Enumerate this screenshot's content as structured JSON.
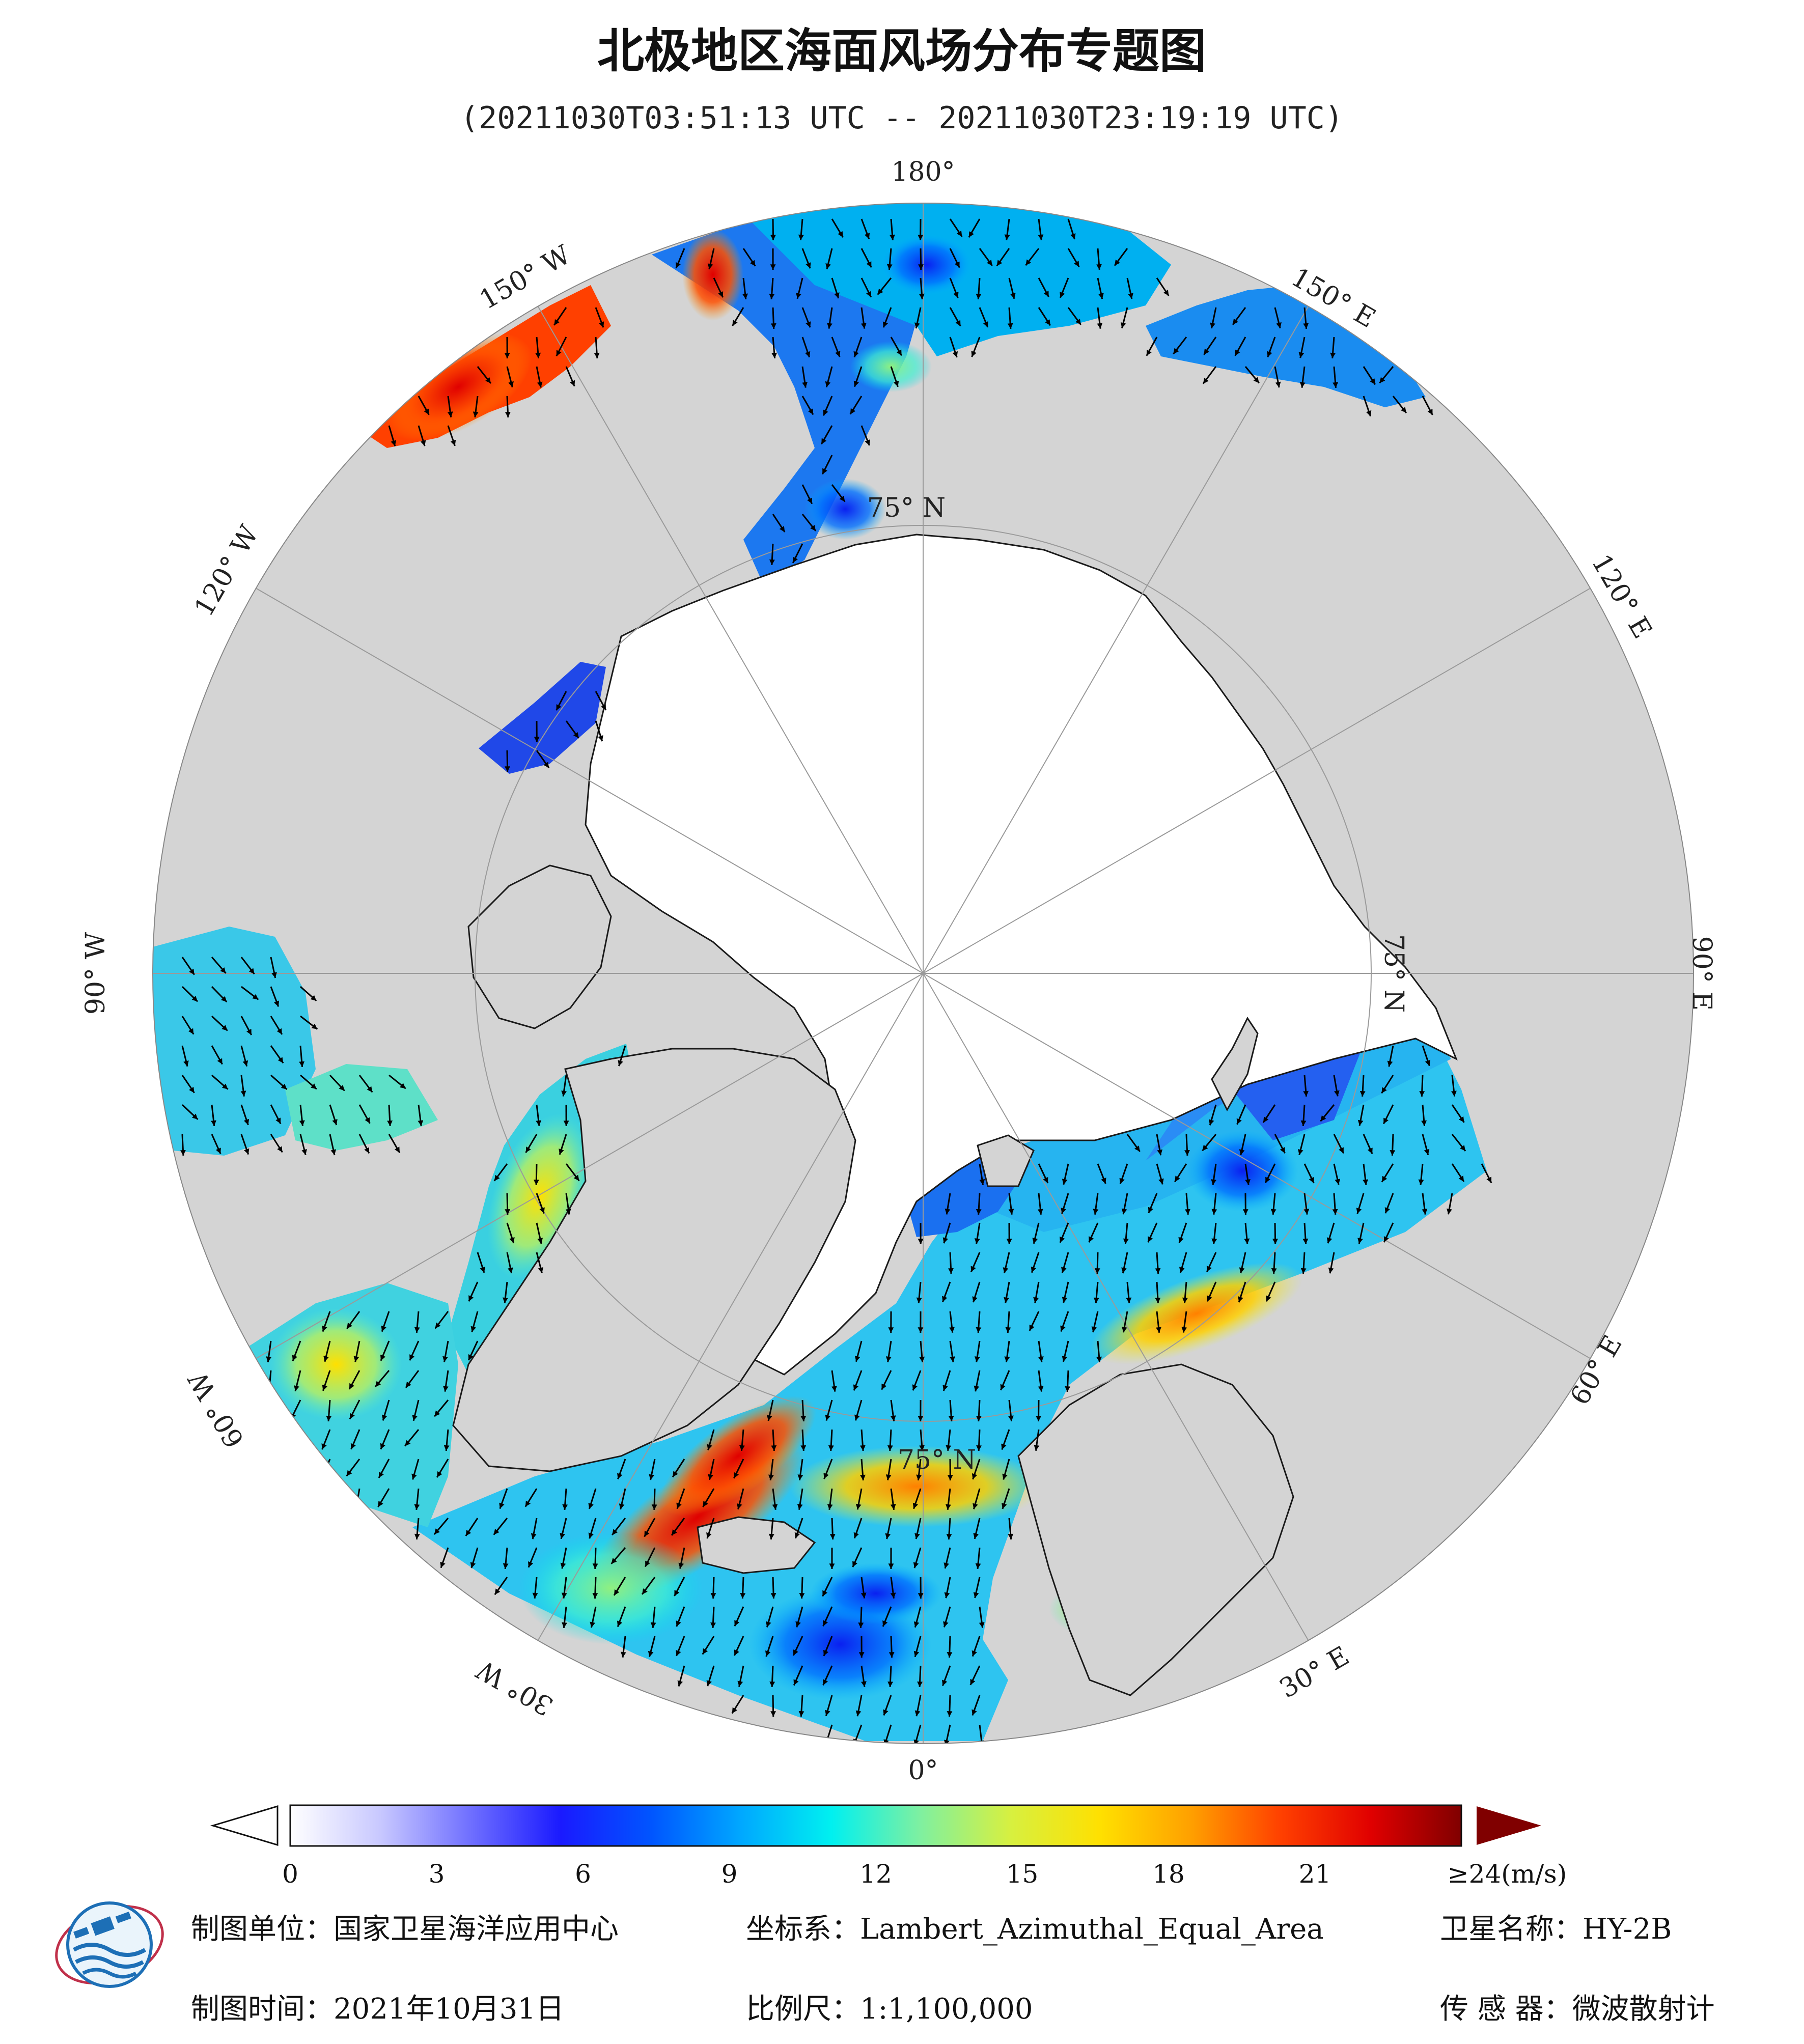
{
  "title": "北极地区海面风场分布专题图",
  "subtitle": "(20211030T03:51:13 UTC -- 20211030T23:19:19 UTC)",
  "map": {
    "longitude_labels": [
      {
        "key": "lon_180",
        "text": "180°"
      },
      {
        "key": "lon_150w",
        "text": "150° W"
      },
      {
        "key": "lon_150e",
        "text": "150° E"
      },
      {
        "key": "lon_120w",
        "text": "120° W"
      },
      {
        "key": "lon_120e",
        "text": "120° E"
      },
      {
        "key": "lon_90w",
        "text": "90° W"
      },
      {
        "key": "lon_90e",
        "text": "90° E"
      },
      {
        "key": "lon_60w",
        "text": "60° W"
      },
      {
        "key": "lon_60e",
        "text": "60° E"
      },
      {
        "key": "lon_30w",
        "text": "30° W"
      },
      {
        "key": "lon_30e",
        "text": "30° E"
      },
      {
        "key": "lon_0",
        "text": "0°"
      }
    ],
    "latitude_labels": [
      "75° N",
      "75° N",
      "75° N"
    ],
    "colors": {
      "land": "#d4d4d4",
      "ice": "#ffffff",
      "coast": "#1a1a1a",
      "graticule": "#9a9a9a",
      "arrow": "#000000"
    }
  },
  "colorbar": {
    "ticks": [
      "0",
      "3",
      "6",
      "9",
      "12",
      "15",
      "18",
      "21",
      "≥24(m/s)"
    ],
    "min": 0,
    "max": 24,
    "stops": [
      "#ffffff",
      "#c8c8ff",
      "#6f6fff",
      "#1a1aff",
      "#0055ff",
      "#00a8ff",
      "#00f0f0",
      "#7ff0a0",
      "#d7f040",
      "#ffe000",
      "#ffa000",
      "#ff4000",
      "#e00000",
      "#800000"
    ]
  },
  "footer": {
    "unit": "制图单位：国家卫星海洋应用中心",
    "crs": "坐标系：Lambert_Azimuthal_Equal_Area",
    "satellite": "卫星名称：HY-2B",
    "date": "制图时间：2021年10月31日",
    "scale": "比例尺：1:1,100,000",
    "sensor": "传 感 器：微波散射计"
  },
  "logo": {
    "icon": "nsoas-logo-icon"
  }
}
